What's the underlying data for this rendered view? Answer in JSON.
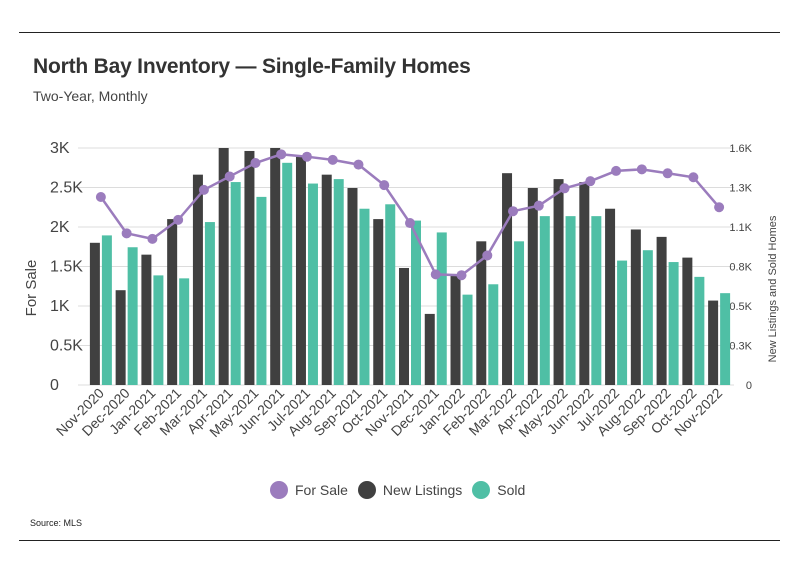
{
  "header": {
    "title": "North Bay Inventory — Single-Family Homes",
    "subtitle": "Two-Year, Monthly"
  },
  "footer": {
    "source": "Source:  MLS"
  },
  "colors": {
    "for_sale": "#9b7cbd",
    "new_listings": "#404040",
    "sold": "#4fbfa5"
  },
  "legend": [
    {
      "label": "For Sale",
      "color": "#9b7cbd"
    },
    {
      "label": "New Listings",
      "color": "#404040"
    },
    {
      "label": "Sold",
      "color": "#4fbfa5"
    }
  ],
  "chart_data": {
    "type": "bar",
    "title": "North Bay Inventory — Single-Family Homes",
    "subtitle": "Two-Year, Monthly",
    "ylabel": "For Sale",
    "y2label": "New Listings and Sold Homes",
    "categories": [
      "Nov-2020",
      "Dec-2020",
      "Jan-2021",
      "Feb-2021",
      "Mar-2021",
      "Apr-2021",
      "May-2021",
      "Jun-2021",
      "Jul-2021",
      "Aug-2021",
      "Sep-2021",
      "Oct-2021",
      "Nov-2021",
      "Dec-2021",
      "Jan-2022",
      "Feb-2022",
      "Mar-2022",
      "Apr-2022",
      "May-2022",
      "Jun-2022",
      "Jul-2022",
      "Aug-2022",
      "Sep-2022",
      "Oct-2022",
      "Nov-2022"
    ],
    "ylim": [
      0,
      3000
    ],
    "y_ticks": [
      "0",
      "0.5K",
      "1K",
      "1.5K",
      "2K",
      "2.5K",
      "3K"
    ],
    "y2lim": [
      0,
      1600
    ],
    "y2_ticks": [
      "0",
      "0.3K",
      "0.5K",
      "0.8K",
      "1.1K",
      "1.3K",
      "1.6K"
    ],
    "grid": "horizontal",
    "legend_position": "bottom",
    "series": [
      {
        "name": "For Sale",
        "type": "line",
        "axis": "left",
        "color": "#9b7cbd",
        "values": [
          2380,
          1920,
          1850,
          2090,
          2470,
          2640,
          2810,
          2920,
          2890,
          2850,
          2790,
          2530,
          2050,
          1400,
          1390,
          1640,
          2200,
          2270,
          2490,
          2580,
          2710,
          2730,
          2680,
          2630,
          2250
        ]
      },
      {
        "name": "New Listings",
        "type": "bar",
        "axis": "right",
        "color": "#404040",
        "values": [
          960,
          640,
          880,
          1120,
          1420,
          1600,
          1580,
          1600,
          1540,
          1420,
          1330,
          1120,
          790,
          480,
          740,
          970,
          1430,
          1330,
          1390,
          1370,
          1190,
          1050,
          1000,
          860,
          570
        ]
      },
      {
        "name": "Sold",
        "type": "bar",
        "axis": "right",
        "color": "#4fbfa5",
        "values": [
          1010,
          930,
          740,
          720,
          1100,
          1370,
          1270,
          1500,
          1360,
          1390,
          1190,
          1220,
          1110,
          1030,
          610,
          680,
          970,
          1140,
          1140,
          1140,
          840,
          910,
          830,
          730,
          620
        ]
      }
    ]
  }
}
